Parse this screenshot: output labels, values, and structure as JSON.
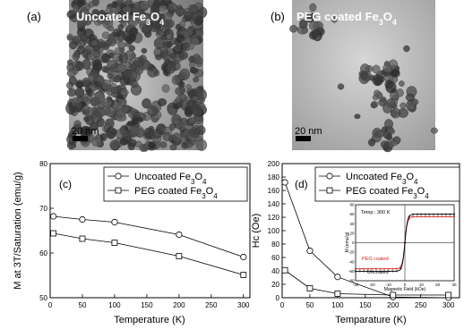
{
  "panels": {
    "a": {
      "label": "(a)",
      "title_main": "Uncoated Fe",
      "title_sub1": "3",
      "title_mid": "O",
      "title_sub2": "4",
      "scalebar": "20 nm"
    },
    "b": {
      "label": "(b)",
      "title_main": "PEG coated Fe",
      "title_sub1": "3",
      "title_mid": "O",
      "title_sub2": "4",
      "scalebar": "20 nm"
    }
  },
  "chart_data": [
    {
      "panel_label": "(c)",
      "type": "line",
      "xlabel": "Temperature (K)",
      "ylabel": "M at 3T/Saturation (emu/g)",
      "xlim": [
        0,
        310
      ],
      "ylim": [
        50,
        80
      ],
      "xticks": [
        0,
        50,
        100,
        150,
        200,
        250,
        300
      ],
      "yticks": [
        50,
        60,
        70,
        80
      ],
      "legend_position": "top-right",
      "series": [
        {
          "name": "Uncoated Fe3O4",
          "legend_main": "Uncoated Fe",
          "legend_s1": "3",
          "legend_mid": "O",
          "legend_s2": "4",
          "marker": "circle",
          "x": [
            5,
            50,
            100,
            200,
            300
          ],
          "y": [
            68.2,
            67.5,
            66.9,
            64.1,
            59.1
          ]
        },
        {
          "name": "PEG coated Fe3O4",
          "legend_main": "PEG coated Fe",
          "legend_s1": "3",
          "legend_mid": "O",
          "legend_s2": "4",
          "marker": "square",
          "x": [
            5,
            50,
            100,
            200,
            300
          ],
          "y": [
            64.4,
            63.2,
            62.3,
            59.3,
            55.1
          ]
        }
      ]
    },
    {
      "panel_label": "(d)",
      "type": "line",
      "xlabel": "Temparature (K)",
      "ylabel": "Hc (Oe)",
      "xlim": [
        0,
        320
      ],
      "ylim": [
        0,
        200
      ],
      "xticks": [
        0,
        50,
        100,
        150,
        200,
        250,
        300
      ],
      "yticks": [
        0,
        20,
        40,
        60,
        80,
        100,
        120,
        140,
        160,
        180,
        200
      ],
      "legend_position": "top-right",
      "series": [
        {
          "name": "Uncoated Fe3O4",
          "legend_main": "Uncoated Fe",
          "legend_s1": "3",
          "legend_mid": "O",
          "legend_s2": "4",
          "marker": "circle",
          "x": [
            5,
            50,
            100,
            200,
            300
          ],
          "y": [
            172,
            70,
            31,
            1,
            0
          ]
        },
        {
          "name": "PEG coated Fe3O4",
          "legend_main": "PEG coated Fe",
          "legend_s1": "3",
          "legend_mid": "O",
          "legend_s2": "4",
          "marker": "square",
          "x": [
            5,
            50,
            100,
            200,
            300
          ],
          "y": [
            41,
            14,
            6,
            4,
            4
          ]
        }
      ]
    },
    {
      "panel_label": "inset",
      "type": "line",
      "annotation": "Temp.: 300 K",
      "xlabel": "Magnetic Field (kOe)",
      "ylabel": "M (emu/g)",
      "xlim": [
        -30,
        30
      ],
      "ylim": [
        -80,
        80
      ],
      "xticks": [
        -30,
        -20,
        -10,
        0,
        10,
        20,
        30
      ],
      "yticks": [
        -80,
        -60,
        -40,
        -20,
        0,
        20,
        40,
        60,
        80
      ],
      "curve_labels": [
        "PEG coated",
        "Uncoated"
      ],
      "series": [
        {
          "name": "PEG coated",
          "color": "#cc2222",
          "saturation": 55
        },
        {
          "name": "Uncoated",
          "color": "#000000",
          "saturation": 60
        }
      ]
    }
  ]
}
